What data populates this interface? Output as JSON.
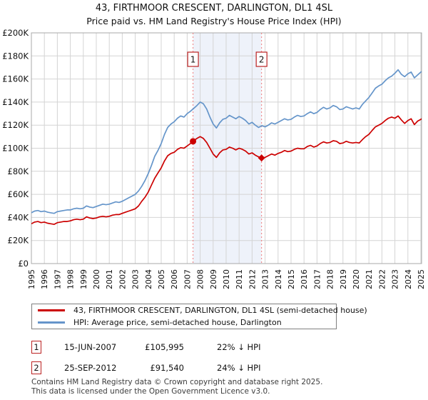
{
  "page": {
    "title_line1": "43, FIRTHMOOR CRESCENT, DARLINGTON, DL1 4SL",
    "title_line2": "Price paid vs. HM Land Registry's House Price Index (HPI)"
  },
  "chart_data": {
    "type": "line",
    "title": "43, FIRTHMOOR CRESCENT, DARLINGTON, DL1 4SL",
    "subtitle": "Price paid vs. HM Land Registry's House Price Index (HPI)",
    "xlim": [
      1995,
      2025.25
    ],
    "ylim": [
      0,
      200000
    ],
    "grid": true,
    "legend_position": "bottom",
    "x_ticks": [
      1995,
      1996,
      1997,
      1998,
      1999,
      2000,
      2001,
      2002,
      2003,
      2004,
      2005,
      2006,
      2007,
      2008,
      2009,
      2010,
      2011,
      2012,
      2013,
      2014,
      2015,
      2016,
      2017,
      2018,
      2019,
      2020,
      2021,
      2022,
      2023,
      2024,
      2025
    ],
    "y_ticks": [
      {
        "value": 0,
        "label": "£0"
      },
      {
        "value": 20000,
        "label": "£20K"
      },
      {
        "value": 40000,
        "label": "£40K"
      },
      {
        "value": 60000,
        "label": "£60K"
      },
      {
        "value": 80000,
        "label": "£80K"
      },
      {
        "value": 100000,
        "label": "£100K"
      },
      {
        "value": 120000,
        "label": "£120K"
      },
      {
        "value": 140000,
        "label": "£140K"
      },
      {
        "value": 160000,
        "label": "£160K"
      },
      {
        "value": 180000,
        "label": "£180K"
      },
      {
        "value": 200000,
        "label": "£200K"
      }
    ],
    "x_start": 1995,
    "x_step": 0.25,
    "series": [
      {
        "name": "43, FIRTHMOOR CRESCENT, DARLINGTON, DL1 4SL (semi-detached house)",
        "color": "#cc0000",
        "values": [
          34500,
          36000,
          36500,
          35500,
          36000,
          35000,
          34500,
          34000,
          35500,
          36000,
          36500,
          36500,
          37000,
          38000,
          38500,
          38000,
          38500,
          40500,
          39500,
          39000,
          39500,
          40500,
          41000,
          40500,
          41000,
          42000,
          42500,
          42500,
          43500,
          44500,
          45500,
          46500,
          47500,
          50000,
          54000,
          57500,
          62000,
          68000,
          74000,
          78500,
          83000,
          89000,
          93500,
          95500,
          96500,
          99000,
          100500,
          100000,
          102000,
          104000,
          106500,
          108500,
          110000,
          108500,
          105000,
          100000,
          95000,
          92000,
          96000,
          98500,
          99000,
          101000,
          100000,
          98500,
          100000,
          99000,
          97500,
          95000,
          96000,
          94000,
          92500,
          91500,
          92000,
          93500,
          95000,
          94000,
          95500,
          96500,
          98000,
          97000,
          97500,
          99000,
          100000,
          99500,
          99500,
          101500,
          102500,
          101000,
          102000,
          104000,
          105500,
          104500,
          105000,
          106500,
          106000,
          104000,
          104500,
          106000,
          105000,
          104500,
          105000,
          104500,
          107500,
          110000,
          112000,
          115500,
          118500,
          120000,
          121500,
          124000,
          126000,
          127000,
          126000,
          128000,
          124500,
          121500,
          124000,
          125500,
          120500,
          123500,
          125000,
          127000
        ]
      },
      {
        "name": "HPI: Average price, semi-detached house, Darlington",
        "color": "#6595ca",
        "values": [
          44000,
          45500,
          46000,
          45000,
          45500,
          44500,
          44000,
          43500,
          45000,
          45500,
          46000,
          46500,
          46500,
          47500,
          48000,
          47500,
          48000,
          50000,
          49000,
          48500,
          49500,
          50500,
          51500,
          51000,
          51500,
          52500,
          53500,
          53000,
          54000,
          55500,
          57000,
          58500,
          60000,
          63000,
          67000,
          72000,
          78000,
          85000,
          93000,
          98000,
          104000,
          112000,
          118000,
          121000,
          123000,
          126000,
          128000,
          127000,
          130000,
          132000,
          134500,
          137000,
          140000,
          138500,
          134000,
          127000,
          121000,
          117500,
          122000,
          125000,
          126000,
          128500,
          127000,
          125500,
          127500,
          126000,
          124000,
          121000,
          122500,
          120000,
          118000,
          119500,
          118500,
          120000,
          122000,
          121000,
          122500,
          124000,
          125500,
          124500,
          125000,
          127000,
          128500,
          127500,
          128000,
          130000,
          131500,
          130000,
          131000,
          133500,
          135500,
          134000,
          135000,
          137000,
          136000,
          133500,
          134000,
          136000,
          135000,
          134000,
          135000,
          134000,
          138000,
          141000,
          144000,
          148000,
          152000,
          154000,
          155500,
          158500,
          161000,
          162500,
          165000,
          168000,
          164000,
          162000,
          164500,
          166000,
          161000,
          163500,
          166000,
          168000
        ]
      }
    ],
    "shaded_span": {
      "from": 2007.45,
      "to": 2012.73
    },
    "sales": [
      {
        "label": "1",
        "x": 2007.45,
        "price": 105995,
        "marker": "circle"
      },
      {
        "label": "2",
        "x": 2012.73,
        "price": 91540,
        "marker": "diamond"
      }
    ],
    "colors": {
      "grid": "#d4d4d4",
      "plot_border": "#a8a8a8",
      "event_line": "#ef7b7b",
      "shaded_band": "#eef2fa",
      "badge_border": "#bb2222"
    }
  },
  "legend": {
    "items": [
      {
        "label": "43, FIRTHMOOR CRESCENT, DARLINGTON, DL1 4SL (semi-detached house)"
      },
      {
        "label": "HPI: Average price, semi-detached house, Darlington"
      }
    ]
  },
  "events": [
    {
      "num": "1",
      "date": "15-JUN-2007",
      "price": "£105,995",
      "vs_hpi": "22% ↓ HPI"
    },
    {
      "num": "2",
      "date": "25-SEP-2012",
      "price": "£91,540",
      "vs_hpi": "24% ↓ HPI"
    }
  ],
  "footer": {
    "line1": "Contains HM Land Registry data © Crown copyright and database right 2025.",
    "line2": "This data is licensed under the Open Government Licence v3.0."
  }
}
